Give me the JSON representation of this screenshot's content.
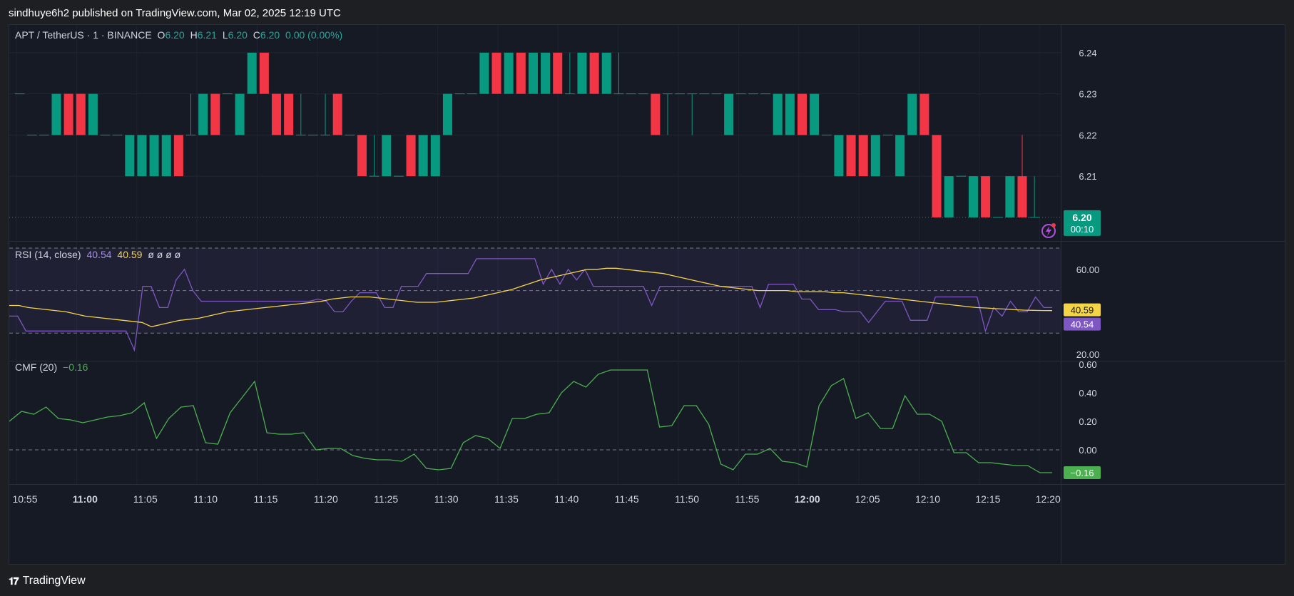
{
  "header": {
    "published": "sindhuye6h2 published on TradingView.com, Mar 02, 2025 12:19 UTC"
  },
  "footer": {
    "brand": "TradingView"
  },
  "legend": {
    "symbol": "APT / TetherUS · 1 · BINANCE",
    "o_label": "O",
    "o": "6.20",
    "h_label": "H",
    "h": "6.21",
    "l_label": "L",
    "l": "6.20",
    "c_label": "C",
    "c": "6.20",
    "change": "0.00 (0.00%)"
  },
  "rsi_legend": {
    "name": "RSI (14, close)",
    "v1": "40.54",
    "v2": "40.59",
    "extra": "ø ø ø ø"
  },
  "cmf_legend": {
    "name": "CMF (20)",
    "v": "−0.16"
  },
  "last_price_tag": {
    "price": "6.20",
    "countdown": "00:10"
  },
  "rsi_tags": {
    "ma": "40.59",
    "rsi": "40.54"
  },
  "cmf_tag": {
    "value": "−0.16"
  },
  "colors": {
    "up": "#089981",
    "down": "#f23645",
    "rsi": "#7e57c2",
    "rsi_ma": "#f5d547",
    "cmf": "#4caf50",
    "background": "#161a25"
  },
  "chart_data": [
    {
      "type": "candlestick",
      "title": "APT / TetherUS · 1 · BINANCE",
      "ylim": [
        6.196,
        6.245
      ],
      "yticks": [
        "6.24",
        "6.23",
        "6.22",
        "6.21"
      ],
      "x": [
        "10:55",
        "11:00",
        "11:05",
        "11:10",
        "11:15",
        "11:20",
        "11:25",
        "11:30",
        "11:35",
        "11:40",
        "11:45",
        "11:50",
        "11:55",
        "12:00",
        "12:05",
        "12:10",
        "12:15",
        "12:20"
      ],
      "candles": [
        [
          6.23,
          6.23,
          6.23,
          6.23
        ],
        [
          6.22,
          6.22,
          6.22,
          6.22
        ],
        [
          6.22,
          6.22,
          6.22,
          6.22
        ],
        [
          6.22,
          6.23,
          6.22,
          6.23
        ],
        [
          6.23,
          6.23,
          6.22,
          6.22
        ],
        [
          6.23,
          6.23,
          6.22,
          6.22
        ],
        [
          6.22,
          6.23,
          6.22,
          6.23
        ],
        [
          6.22,
          6.22,
          6.22,
          6.22
        ],
        [
          6.22,
          6.22,
          6.22,
          6.22
        ],
        [
          6.21,
          6.22,
          6.21,
          6.22
        ],
        [
          6.21,
          6.22,
          6.21,
          6.22
        ],
        [
          6.21,
          6.22,
          6.21,
          6.22
        ],
        [
          6.21,
          6.22,
          6.21,
          6.22
        ],
        [
          6.22,
          6.22,
          6.21,
          6.21
        ],
        [
          6.22,
          6.23,
          6.22,
          6.22
        ],
        [
          6.22,
          6.23,
          6.22,
          6.23
        ],
        [
          6.23,
          6.23,
          6.22,
          6.22
        ],
        [
          6.23,
          6.23,
          6.23,
          6.23
        ],
        [
          6.22,
          6.23,
          6.22,
          6.23
        ],
        [
          6.23,
          6.24,
          6.23,
          6.24
        ],
        [
          6.24,
          6.24,
          6.23,
          6.23
        ],
        [
          6.23,
          6.23,
          6.22,
          6.22
        ],
        [
          6.23,
          6.23,
          6.22,
          6.22
        ],
        [
          6.22,
          6.23,
          6.22,
          6.22
        ],
        [
          6.22,
          6.22,
          6.22,
          6.22
        ],
        [
          6.22,
          6.23,
          6.22,
          6.22
        ],
        [
          6.23,
          6.23,
          6.22,
          6.22
        ],
        [
          6.22,
          6.22,
          6.22,
          6.22
        ],
        [
          6.22,
          6.22,
          6.21,
          6.21
        ],
        [
          6.21,
          6.22,
          6.21,
          6.21
        ],
        [
          6.21,
          6.22,
          6.21,
          6.22
        ],
        [
          6.21,
          6.21,
          6.21,
          6.21
        ],
        [
          6.22,
          6.22,
          6.21,
          6.21
        ],
        [
          6.21,
          6.22,
          6.21,
          6.22
        ],
        [
          6.21,
          6.22,
          6.21,
          6.22
        ],
        [
          6.22,
          6.23,
          6.22,
          6.23
        ],
        [
          6.23,
          6.23,
          6.23,
          6.23
        ],
        [
          6.23,
          6.23,
          6.23,
          6.23
        ],
        [
          6.23,
          6.24,
          6.23,
          6.24
        ],
        [
          6.24,
          6.24,
          6.23,
          6.23
        ],
        [
          6.23,
          6.24,
          6.23,
          6.24
        ],
        [
          6.24,
          6.24,
          6.23,
          6.23
        ],
        [
          6.23,
          6.24,
          6.23,
          6.24
        ],
        [
          6.23,
          6.24,
          6.23,
          6.24
        ],
        [
          6.24,
          6.24,
          6.23,
          6.23
        ],
        [
          6.23,
          6.24,
          6.23,
          6.23
        ],
        [
          6.23,
          6.24,
          6.23,
          6.24
        ],
        [
          6.24,
          6.24,
          6.23,
          6.23
        ],
        [
          6.23,
          6.24,
          6.23,
          6.24
        ],
        [
          6.23,
          6.24,
          6.23,
          6.23
        ],
        [
          6.23,
          6.23,
          6.23,
          6.23
        ],
        [
          6.23,
          6.23,
          6.23,
          6.23
        ],
        [
          6.23,
          6.23,
          6.22,
          6.22
        ],
        [
          6.23,
          6.23,
          6.22,
          6.23
        ],
        [
          6.23,
          6.23,
          6.23,
          6.23
        ],
        [
          6.23,
          6.23,
          6.22,
          6.23
        ],
        [
          6.23,
          6.23,
          6.23,
          6.23
        ],
        [
          6.23,
          6.23,
          6.23,
          6.23
        ],
        [
          6.22,
          6.23,
          6.22,
          6.23
        ],
        [
          6.23,
          6.23,
          6.23,
          6.23
        ],
        [
          6.23,
          6.23,
          6.23,
          6.23
        ],
        [
          6.23,
          6.23,
          6.23,
          6.23
        ],
        [
          6.22,
          6.23,
          6.22,
          6.23
        ],
        [
          6.22,
          6.23,
          6.22,
          6.23
        ],
        [
          6.23,
          6.23,
          6.22,
          6.22
        ],
        [
          6.22,
          6.23,
          6.22,
          6.23
        ],
        [
          6.22,
          6.22,
          6.22,
          6.22
        ],
        [
          6.21,
          6.22,
          6.21,
          6.22
        ],
        [
          6.22,
          6.22,
          6.21,
          6.21
        ],
        [
          6.22,
          6.22,
          6.21,
          6.21
        ],
        [
          6.21,
          6.22,
          6.21,
          6.22
        ],
        [
          6.22,
          6.22,
          6.22,
          6.22
        ],
        [
          6.21,
          6.22,
          6.21,
          6.22
        ],
        [
          6.22,
          6.23,
          6.22,
          6.23
        ],
        [
          6.23,
          6.23,
          6.22,
          6.22
        ],
        [
          6.22,
          6.22,
          6.2,
          6.2
        ],
        [
          6.2,
          6.21,
          6.2,
          6.21
        ],
        [
          6.21,
          6.21,
          6.21,
          6.21
        ],
        [
          6.2,
          6.21,
          6.2,
          6.21
        ],
        [
          6.21,
          6.21,
          6.2,
          6.2
        ],
        [
          6.2,
          6.2,
          6.2,
          6.2
        ],
        [
          6.2,
          6.21,
          6.2,
          6.21
        ],
        [
          6.21,
          6.22,
          6.2,
          6.2
        ],
        [
          6.2,
          6.21,
          6.2,
          6.2
        ]
      ],
      "last_price": 6.2
    },
    {
      "type": "line",
      "title": "RSI (14, close)",
      "ylim": [
        17,
        73
      ],
      "yticks": [
        "60.00",
        "20.00"
      ],
      "levels": [
        70,
        50,
        30
      ],
      "series": [
        {
          "name": "RSI",
          "values": [
            38,
            38,
            31,
            31,
            31,
            31,
            31,
            31,
            31,
            31,
            31,
            31,
            31,
            31,
            31,
            22,
            52,
            52,
            42,
            42,
            55,
            60,
            50,
            45,
            45,
            45,
            45,
            45,
            45,
            45,
            45,
            45,
            45,
            45,
            45,
            45,
            45,
            46,
            45,
            40,
            40,
            45,
            49,
            49,
            49,
            42,
            42,
            52,
            52,
            52,
            58,
            58,
            58,
            58,
            58,
            58,
            65,
            65,
            65,
            65,
            65,
            65,
            65,
            65,
            53,
            60,
            53,
            60,
            55,
            60,
            52,
            52,
            52,
            52,
            52,
            52,
            52,
            43,
            52,
            52,
            52,
            52,
            52,
            52,
            52,
            52,
            52,
            52,
            52,
            52,
            42,
            53,
            53,
            53,
            53,
            46,
            46,
            41,
            41,
            41,
            40,
            40,
            40,
            35,
            40,
            45,
            45,
            45,
            36,
            36,
            36,
            47,
            47,
            47,
            47,
            47,
            47,
            31,
            42,
            38,
            45,
            40,
            40,
            47,
            42,
            42
          ]
        },
        {
          "name": "RSI MA",
          "values": [
            43,
            43,
            42,
            41.5,
            41,
            40.5,
            40,
            39,
            38,
            37.5,
            37,
            36.5,
            36,
            35.5,
            35,
            33,
            34,
            35,
            36,
            36.5,
            37,
            38,
            39,
            40,
            40.5,
            41,
            41.5,
            42,
            42.5,
            43,
            43.5,
            44,
            44.5,
            45,
            46,
            46.5,
            47,
            47,
            47,
            46.5,
            46,
            45.5,
            45,
            44.5,
            44.5,
            44.5,
            45,
            45.5,
            46,
            46.5,
            47.5,
            48.5,
            49.5,
            50.5,
            52,
            53.5,
            55,
            56,
            57,
            58,
            59,
            60,
            60,
            60.5,
            60.5,
            60,
            59.5,
            59,
            58.5,
            58,
            57,
            56,
            55,
            54,
            53,
            52,
            51.5,
            51,
            50.5,
            50,
            50,
            50,
            50,
            49.5,
            49.5,
            49.5,
            49.5,
            49,
            49,
            48.5,
            48,
            47.5,
            47,
            46.5,
            46,
            45.5,
            45,
            44.5,
            44,
            43.5,
            43,
            42.5,
            42,
            41.8,
            41.5,
            41.3,
            41,
            40.8,
            40.7,
            40.6,
            40.59
          ]
        }
      ],
      "last_values": {
        "RSI MA": 40.59,
        "RSI": 40.54
      }
    },
    {
      "type": "line",
      "title": "CMF (20)",
      "ylim": [
        -0.24,
        0.62
      ],
      "yticks": [
        "0.60",
        "0.40",
        "0.20",
        "0.00"
      ],
      "levels": [
        0
      ],
      "series": [
        {
          "name": "CMF",
          "values": [
            0.2,
            0.27,
            0.25,
            0.3,
            0.22,
            0.21,
            0.19,
            0.21,
            0.23,
            0.24,
            0.26,
            0.33,
            0.08,
            0.22,
            0.3,
            0.31,
            0.05,
            0.04,
            0.26,
            0.37,
            0.48,
            0.12,
            0.11,
            0.11,
            0.12,
            0.0,
            0.01,
            0.01,
            -0.04,
            -0.06,
            -0.07,
            -0.07,
            -0.08,
            -0.03,
            -0.13,
            -0.14,
            -0.13,
            0.05,
            0.1,
            0.08,
            0.01,
            0.22,
            0.22,
            0.25,
            0.26,
            0.4,
            0.48,
            0.44,
            0.53,
            0.56,
            0.56,
            0.56,
            0.56,
            0.16,
            0.17,
            0.31,
            0.31,
            0.18,
            -0.1,
            -0.14,
            -0.03,
            -0.03,
            0.01,
            -0.08,
            -0.09,
            -0.12,
            0.31,
            0.45,
            0.5,
            0.22,
            0.26,
            0.15,
            0.15,
            0.38,
            0.25,
            0.25,
            0.2,
            -0.02,
            -0.02,
            -0.09,
            -0.09,
            -0.1,
            -0.11,
            -0.11,
            -0.16,
            -0.16
          ]
        }
      ],
      "last_value": -0.16
    }
  ],
  "x_axis_labels": [
    "10:55",
    "11:00",
    "11:05",
    "11:10",
    "11:15",
    "11:20",
    "11:25",
    "11:30",
    "11:35",
    "11:40",
    "11:45",
    "11:50",
    "11:55",
    "12:00",
    "12:05",
    "12:10",
    "12:15",
    "12:20"
  ],
  "x_axis_bold": [
    "11:00",
    "12:00"
  ]
}
